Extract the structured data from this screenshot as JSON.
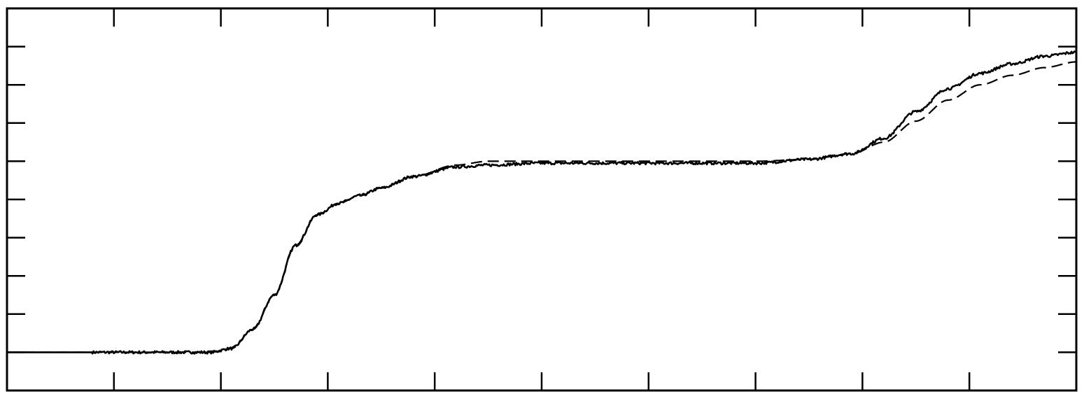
{
  "chart_data": {
    "type": "line",
    "title": "",
    "xlabel": "",
    "ylabel": "",
    "xlim": [
      0,
      10
    ],
    "ylim": [
      -1,
      9
    ],
    "x_major_ticks": [
      0,
      1,
      2,
      3,
      4,
      5,
      6,
      7,
      8,
      9,
      10
    ],
    "y_major_ticks": [
      -1,
      0,
      1,
      2,
      3,
      4,
      5,
      6,
      7,
      8,
      9
    ],
    "grid": false,
    "legend": "none",
    "colors": {
      "line": "#000000",
      "frame": "#000000",
      "background": "#ffffff"
    },
    "series": [
      {
        "style": "solid-noisy",
        "x": [
          0,
          0.5,
          1,
          1.5,
          1.9,
          2.1,
          2.3,
          2.5,
          2.7,
          2.9,
          3.1,
          3.3,
          3.5,
          3.8,
          4.2,
          4.5,
          5,
          5.5,
          6,
          6.5,
          7,
          7.5,
          7.9,
          8.2,
          8.5,
          8.8,
          9.1,
          9.4,
          9.7,
          10
        ],
        "y": [
          0,
          0,
          0,
          0,
          0,
          0.1,
          0.6,
          1.5,
          2.8,
          3.6,
          3.9,
          4.1,
          4.3,
          4.6,
          4.85,
          4.9,
          4.95,
          4.95,
          4.95,
          4.95,
          4.95,
          5.05,
          5.2,
          5.6,
          6.3,
          6.9,
          7.3,
          7.55,
          7.75,
          7.85
        ]
      },
      {
        "style": "dashed",
        "x": [
          0,
          0.5,
          1,
          1.5,
          1.9,
          2.1,
          2.3,
          2.5,
          2.7,
          2.9,
          3.1,
          3.3,
          3.5,
          3.8,
          4.2,
          4.5,
          5,
          5.5,
          6,
          6.5,
          7,
          7.5,
          7.9,
          8.2,
          8.5,
          8.8,
          9.1,
          9.4,
          9.7,
          10
        ],
        "y": [
          0,
          0,
          0,
          0,
          0,
          0.1,
          0.6,
          1.5,
          2.8,
          3.6,
          3.9,
          4.1,
          4.3,
          4.6,
          4.9,
          5.0,
          5.0,
          5.0,
          5.0,
          5.0,
          5.0,
          5.05,
          5.2,
          5.5,
          6.05,
          6.6,
          7.0,
          7.25,
          7.45,
          7.6
        ]
      }
    ]
  }
}
